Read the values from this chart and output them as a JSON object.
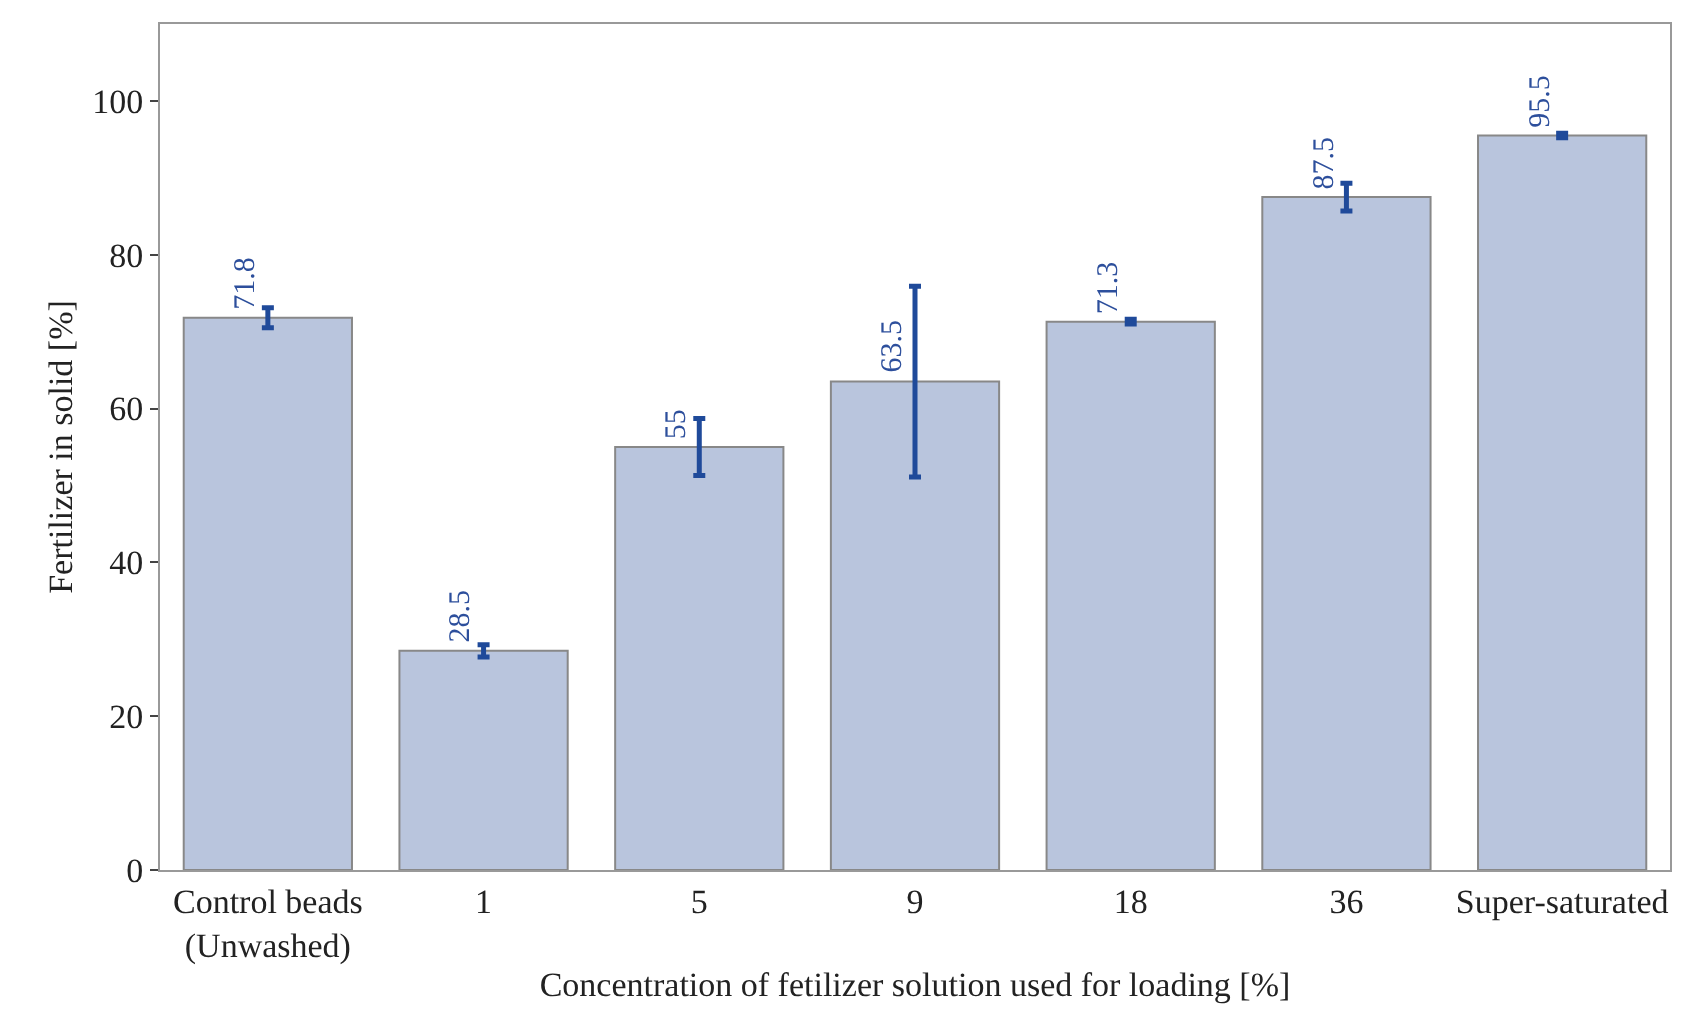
{
  "chart_data": {
    "type": "bar",
    "xlabel": "Concentration of fetilizer solution used for loading [%]",
    "ylabel": "Fertilizer in solid [%]",
    "categories": [
      "Control beads\n(Unwashed)",
      "1",
      "5",
      "9",
      "18",
      "36",
      "Super-saturated"
    ],
    "values": [
      71.8,
      28.5,
      55,
      63.5,
      71.3,
      87.5,
      95.5
    ],
    "errors": [
      1.3,
      0.8,
      3.7,
      12.4,
      0.3,
      1.8,
      0.3
    ],
    "color": "#b9c5dd",
    "data_labels": true,
    "grid": false,
    "legend": false,
    "ylim": [
      0,
      110
    ],
    "yticks": [
      0,
      20,
      40,
      60,
      80,
      100
    ]
  }
}
